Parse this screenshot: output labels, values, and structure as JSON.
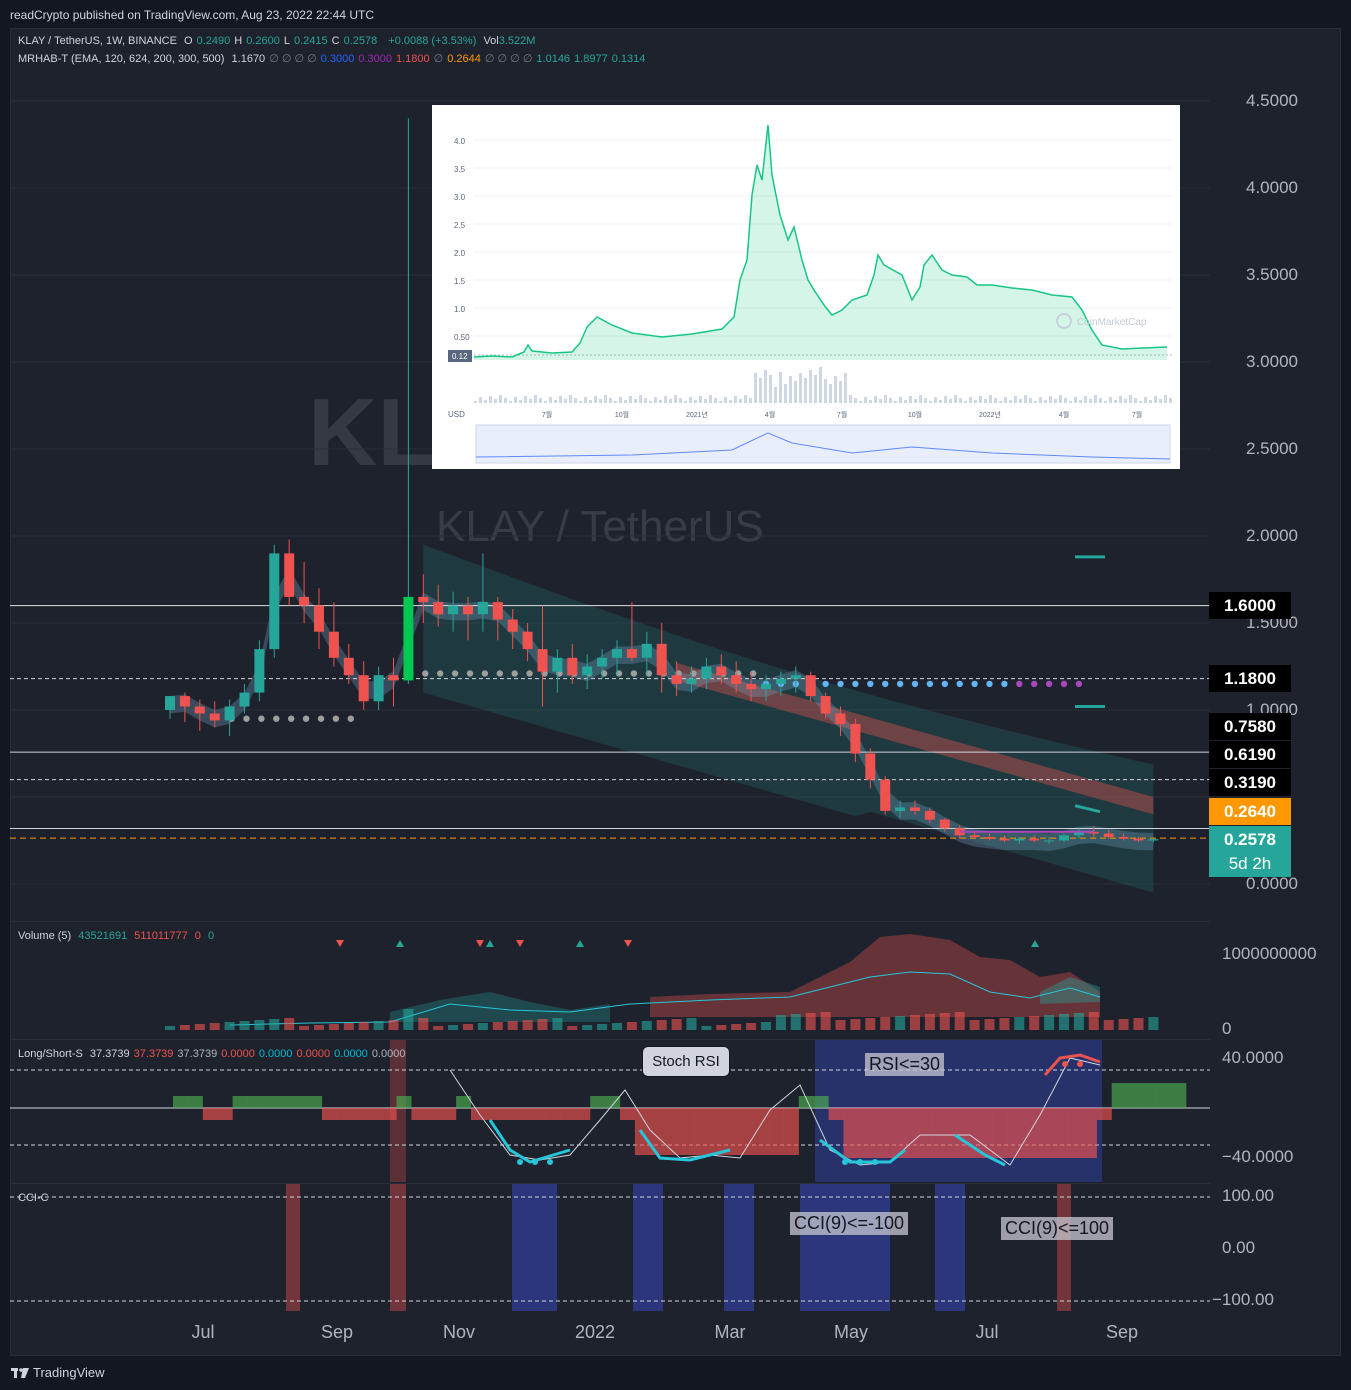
{
  "header": {
    "published": "readCrypto published on TradingView.com, Aug 23, 2022 22:44 UTC"
  },
  "legend": {
    "symbol": "KLAY / TetherUS, 1W, BINANCE",
    "ohlc": [
      {
        "label": "O",
        "value": "0.2490"
      },
      {
        "label": "H",
        "value": "0.2600"
      },
      {
        "label": "L",
        "value": "0.2415"
      },
      {
        "label": "C",
        "value": "0.2578"
      }
    ],
    "change": "+0.0088 (+3.53%)",
    "vol_label": "Vol",
    "vol_value": "3.522M",
    "indicator_name": "MRHAB-T (EMA, 120, 624, 200, 300, 500)",
    "indicator_values": [
      {
        "text": "1.1670",
        "color": "#d1d4dc"
      },
      {
        "text": "∅ ∅ ∅ ∅",
        "color": "#787b86"
      },
      {
        "text": "0.3000",
        "color": "#2962ff"
      },
      {
        "text": "0.3000",
        "color": "#9c27b0"
      },
      {
        "text": "1.1800",
        "color": "#ef5350"
      },
      {
        "text": "∅",
        "color": "#787b86"
      },
      {
        "text": "0.2644",
        "color": "#ff9800"
      },
      {
        "text": "∅ ∅ ∅ ∅",
        "color": "#787b86"
      },
      {
        "text": "1.0146",
        "color": "#26a69a"
      },
      {
        "text": "1.8977",
        "color": "#26a69a"
      },
      {
        "text": "0.1314",
        "color": "#26a69a"
      }
    ]
  },
  "watermark": {
    "symbol": "KLAY / TetherUS",
    "ticker": "KLAY"
  },
  "price_axis": {
    "ticks": [
      "4.5000",
      "4.0000",
      "3.5000",
      "3.0000",
      "2.5000",
      "2.0000",
      "1.5000",
      "1.0000",
      "0.0000"
    ]
  },
  "price_tags": [
    {
      "text": "1.6000",
      "bg": "#000000",
      "fg": "#ffffff"
    },
    {
      "text": "1.1800",
      "bg": "#000000",
      "fg": "#ffffff"
    },
    {
      "text": "0.7580",
      "bg": "#000000",
      "fg": "#ffffff"
    },
    {
      "text": "0.6190",
      "bg": "#000000",
      "fg": "#ffffff"
    },
    {
      "text": "0.3190",
      "bg": "#000000",
      "fg": "#ffffff"
    },
    {
      "text": "0.2640",
      "bg": "#ff9800",
      "fg": "#ffffff"
    },
    {
      "text": "0.2578",
      "bg": "#26a69a",
      "fg": "#ffffff"
    }
  ],
  "countdown": "5d 2h",
  "time_axis": [
    "Jul",
    "Sep",
    "Nov",
    "2022",
    "Mar",
    "May",
    "Jul",
    "Sep"
  ],
  "volume_pane": {
    "label": "Volume (5)",
    "v1": "43521691",
    "v2": "511011777",
    "v3": "0",
    "v4": "0",
    "axis": [
      "1000000000",
      "0"
    ]
  },
  "ls_pane": {
    "label": "Long/Short-S",
    "values": [
      {
        "text": "37.3739",
        "color": "#d1d4dc"
      },
      {
        "text": "37.3739",
        "color": "#ef5350"
      },
      {
        "text": "37.3739",
        "color": "#b2b5be"
      },
      {
        "text": "0.0000",
        "color": "#ef5350"
      },
      {
        "text": "0.0000",
        "color": "#00bcd4"
      },
      {
        "text": "0.0000",
        "color": "#ef5350"
      },
      {
        "text": "0.0000",
        "color": "#00bcd4"
      },
      {
        "text": "0.0000",
        "color": "#b2b5be"
      }
    ],
    "axis": [
      "40.0000",
      "−40.0000"
    ],
    "callout": "Stoch RSI",
    "note": "RSI<=30"
  },
  "cci_pane": {
    "label": "CCI-C",
    "axis": [
      "100.00",
      "0.00",
      "−100.00"
    ],
    "note1": "CCI(9)<=-100",
    "note2": "CCI(9)<=100"
  },
  "inset": {
    "y_ticks": [
      "4.0",
      "3.5",
      "3.0",
      "2.5",
      "2.0",
      "1.5",
      "1.0",
      "0.50"
    ],
    "current": "0.12",
    "currency": "USD",
    "x_ticks": [
      "7월",
      "10월",
      "2021년",
      "4월",
      "7월",
      "10월",
      "2022년",
      "4월",
      "7월"
    ],
    "source": "CoinMarketCap"
  },
  "footer": {
    "brand": "TradingView"
  },
  "chart_data": {
    "type": "candlestick",
    "symbol": "KLAY / TetherUS",
    "interval": "1W",
    "exchange": "BINANCE",
    "ylim": [
      0,
      4.6
    ],
    "x": [
      "Jul",
      "Sep",
      "Nov",
      "2022",
      "Mar",
      "May",
      "Jul",
      "Sep"
    ],
    "candles": [
      [
        1.0,
        1.08,
        0.95,
        1.08
      ],
      [
        1.08,
        1.1,
        0.93,
        1.02
      ],
      [
        1.02,
        1.06,
        0.88,
        0.98
      ],
      [
        0.98,
        1.05,
        0.9,
        0.94
      ],
      [
        0.94,
        1.06,
        0.85,
        1.02
      ],
      [
        1.02,
        1.15,
        0.98,
        1.1
      ],
      [
        1.1,
        1.4,
        1.05,
        1.35
      ],
      [
        1.35,
        1.95,
        1.3,
        1.9
      ],
      [
        1.9,
        1.98,
        1.6,
        1.65
      ],
      [
        1.65,
        1.85,
        1.5,
        1.6
      ],
      [
        1.6,
        1.7,
        1.35,
        1.45
      ],
      [
        1.45,
        1.62,
        1.25,
        1.3
      ],
      [
        1.3,
        1.38,
        1.15,
        1.2
      ],
      [
        1.2,
        1.28,
        1.0,
        1.05
      ],
      [
        1.05,
        1.25,
        1.0,
        1.2
      ],
      [
        1.2,
        1.3,
        1.02,
        1.17
      ],
      [
        1.17,
        4.4,
        1.15,
        1.65
      ],
      [
        1.65,
        1.78,
        1.5,
        1.62
      ],
      [
        1.62,
        1.72,
        1.48,
        1.55
      ],
      [
        1.55,
        1.68,
        1.45,
        1.6
      ],
      [
        1.6,
        1.65,
        1.4,
        1.55
      ],
      [
        1.55,
        1.9,
        1.45,
        1.62
      ],
      [
        1.62,
        1.65,
        1.4,
        1.52
      ],
      [
        1.52,
        1.58,
        1.35,
        1.45
      ],
      [
        1.45,
        1.5,
        1.28,
        1.35
      ],
      [
        1.35,
        1.6,
        1.02,
        1.22
      ],
      [
        1.22,
        1.35,
        1.1,
        1.3
      ],
      [
        1.3,
        1.38,
        1.15,
        1.2
      ],
      [
        1.2,
        1.32,
        1.12,
        1.25
      ],
      [
        1.25,
        1.35,
        1.18,
        1.3
      ],
      [
        1.3,
        1.4,
        1.2,
        1.35
      ],
      [
        1.35,
        1.62,
        1.28,
        1.3
      ],
      [
        1.3,
        1.45,
        1.2,
        1.38
      ],
      [
        1.38,
        1.5,
        1.1,
        1.2
      ],
      [
        1.2,
        1.28,
        1.08,
        1.15
      ],
      [
        1.15,
        1.25,
        1.1,
        1.18
      ],
      [
        1.18,
        1.3,
        1.12,
        1.25
      ],
      [
        1.25,
        1.32,
        1.15,
        1.2
      ],
      [
        1.2,
        1.28,
        1.1,
        1.15
      ],
      [
        1.15,
        1.22,
        1.05,
        1.12
      ],
      [
        1.12,
        1.2,
        1.05,
        1.15
      ],
      [
        1.15,
        1.22,
        1.08,
        1.18
      ],
      [
        1.18,
        1.25,
        1.1,
        1.2
      ],
      [
        1.2,
        1.22,
        1.05,
        1.08
      ],
      [
        1.08,
        1.1,
        0.95,
        0.98
      ],
      [
        0.98,
        1.02,
        0.85,
        0.92
      ],
      [
        0.92,
        0.95,
        0.7,
        0.75
      ],
      [
        0.75,
        0.78,
        0.55,
        0.6
      ],
      [
        0.6,
        0.62,
        0.4,
        0.42
      ],
      [
        0.42,
        0.48,
        0.38,
        0.44
      ],
      [
        0.44,
        0.48,
        0.4,
        0.42
      ],
      [
        0.42,
        0.44,
        0.35,
        0.37
      ],
      [
        0.37,
        0.38,
        0.3,
        0.32
      ],
      [
        0.32,
        0.34,
        0.26,
        0.28
      ],
      [
        0.28,
        0.3,
        0.26,
        0.27
      ],
      [
        0.27,
        0.29,
        0.25,
        0.26
      ],
      [
        0.26,
        0.28,
        0.24,
        0.25
      ],
      [
        0.25,
        0.27,
        0.23,
        0.26
      ],
      [
        0.26,
        0.28,
        0.24,
        0.25
      ],
      [
        0.25,
        0.27,
        0.23,
        0.25
      ],
      [
        0.25,
        0.29,
        0.24,
        0.28
      ],
      [
        0.28,
        0.32,
        0.26,
        0.3
      ],
      [
        0.3,
        0.33,
        0.27,
        0.29
      ],
      [
        0.29,
        0.31,
        0.26,
        0.27
      ],
      [
        0.27,
        0.29,
        0.25,
        0.26
      ],
      [
        0.26,
        0.27,
        0.24,
        0.25
      ],
      [
        0.25,
        0.26,
        0.24,
        0.2578
      ]
    ],
    "levels": [
      1.6,
      1.18,
      0.758,
      0.619,
      0.319,
      0.264
    ],
    "last_price": 0.2578
  }
}
